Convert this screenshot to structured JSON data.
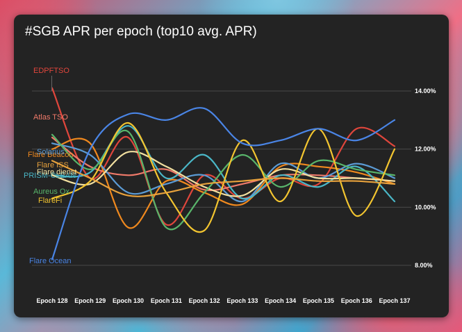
{
  "chart_data": {
    "type": "line",
    "title": "#SGB APR per epoch (top10 avg. APR)",
    "xlabel": "",
    "ylabel": "",
    "ylim": [
      7.5,
      15.2
    ],
    "yticks": [
      8,
      10,
      12,
      14
    ],
    "ytick_labels": [
      "8.00%",
      "10.00%",
      "12.00%",
      "14.00%"
    ],
    "grid": true,
    "legend": "none (series labels at line starts)",
    "categories": [
      "Epoch 128",
      "Epoch 129",
      "Epoch 130",
      "Epoch 131",
      "Epoch 132",
      "Epoch 133",
      "Epoch 134",
      "Epoch 135",
      "Epoch 136",
      "Epoch 137"
    ],
    "series": [
      {
        "name": "EDPFTSO",
        "color": "#e0463c",
        "values": [
          14.1,
          11.0,
          12.4,
          9.4,
          11.1,
          10.3,
          11.0,
          10.8,
          12.7,
          12.1
        ]
      },
      {
        "name": "Atlas TSO",
        "color": "#f07a6a",
        "values": [
          12.4,
          11.4,
          11.1,
          11.3,
          10.6,
          10.8,
          11.1,
          11.1,
          11.0,
          10.9
        ]
      },
      {
        "name": "Flare Beacon",
        "color": "#f0891e",
        "values": [
          12.0,
          12.2,
          9.3,
          10.9,
          10.5,
          10.1,
          11.4,
          11.4,
          11.2,
          10.8
        ]
      },
      {
        "name": "Solarius",
        "color": "#5b9bd5",
        "values": [
          12.2,
          11.8,
          10.5,
          10.8,
          11.1,
          10.2,
          11.5,
          11.0,
          11.5,
          11.0
        ]
      },
      {
        "name": "PRISM-CLEAN",
        "color": "#4ab7c7",
        "values": [
          11.1,
          11.2,
          12.8,
          11.0,
          11.8,
          10.3,
          11.1,
          10.7,
          11.4,
          10.2
        ]
      },
      {
        "name": "Flare dienst",
        "color": "#f2e0a0",
        "values": [
          11.1,
          10.8,
          11.9,
          11.4,
          10.7,
          10.4,
          11.3,
          11.0,
          11.0,
          10.9
        ]
      },
      {
        "name": "Aureus Ox",
        "color": "#59b56b",
        "values": [
          12.5,
          11.3,
          12.6,
          9.3,
          10.5,
          11.8,
          10.7,
          11.6,
          11.3,
          11.1
        ]
      },
      {
        "name": "FlareFi",
        "color": "#f3c530",
        "values": [
          10.3,
          10.9,
          12.9,
          10.5,
          9.2,
          12.3,
          10.2,
          12.7,
          9.7,
          12.0
        ]
      },
      {
        "name": "Flare Ocean",
        "color": "#4a85e6",
        "values": [
          8.2,
          12.0,
          13.2,
          13.0,
          13.4,
          12.2,
          12.3,
          12.7,
          12.3,
          13.0
        ]
      },
      {
        "name": "Flare ISS",
        "color": "#e8a23c",
        "values": [
          11.6,
          11.0,
          10.4,
          10.5,
          10.8,
          10.9,
          11.0,
          10.9,
          10.9,
          10.8
        ]
      }
    ]
  }
}
